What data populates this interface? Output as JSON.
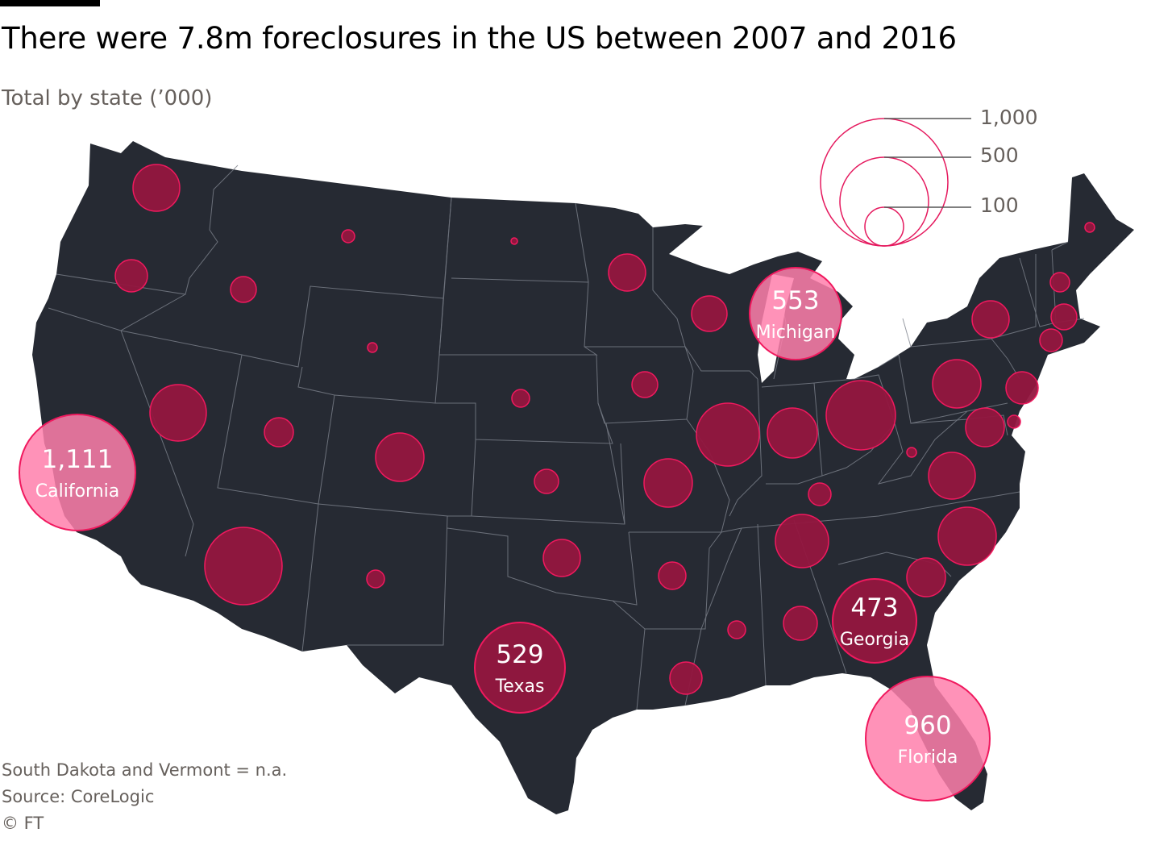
{
  "title": "There were 7.8m foreclosures in the US between 2007 and 2016",
  "subtitle": "Total by state (’000)",
  "colors": {
    "land": "#262a33",
    "border": "#7d828c",
    "bubble_fill": "#93163f",
    "bubble_stroke": "#f0195e",
    "highlight_fill": "#ff7fab",
    "legend_stroke": "#e5195e"
  },
  "legend": {
    "labels": [
      "1,000",
      "500",
      "100"
    ]
  },
  "chart_data": {
    "type": "proportional-symbol map",
    "value_unit": "thousands of foreclosures",
    "labelled": [
      {
        "state": "California",
        "value": 1111,
        "value_text": "1,111"
      },
      {
        "state": "Florida",
        "value": 960,
        "value_text": "960"
      },
      {
        "state": "Michigan",
        "value": 553,
        "value_text": "553"
      },
      {
        "state": "Texas",
        "value": 529,
        "value_text": "529"
      },
      {
        "state": "Georgia",
        "value": 473,
        "value_text": "473"
      }
    ],
    "not_available": [
      "South Dakota",
      "Vermont"
    ]
  },
  "notes": {
    "line1": "South Dakota and Vermont = n.a.",
    "line2": "Source: CoreLogic",
    "line3": "© FT"
  }
}
